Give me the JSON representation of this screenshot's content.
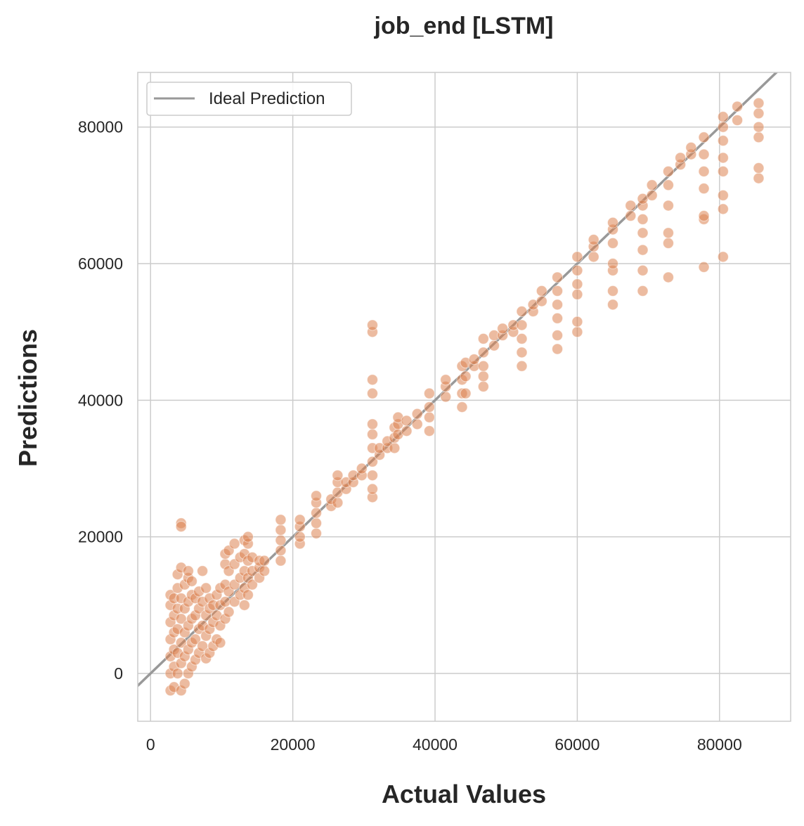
{
  "colors": {
    "point": "#dd8452",
    "ideal_line": "#999999",
    "grid": "#cccccc",
    "axes_edge": "#cccccc",
    "text": "#262626"
  },
  "chart_data": {
    "type": "scatter",
    "title": "job_end [LSTM]",
    "xlabel": "Actual Values",
    "ylabel": "Predictions",
    "xlim": [
      -1800,
      90000
    ],
    "ylim": [
      -7000,
      88000
    ],
    "xticks": [
      0,
      20000,
      40000,
      60000,
      80000
    ],
    "yticks": [
      0,
      20000,
      40000,
      60000,
      80000
    ],
    "xtick_labels": [
      "0",
      "20000",
      "40000",
      "60000",
      "80000"
    ],
    "ytick_labels": [
      "0",
      "20000",
      "40000",
      "60000",
      "80000"
    ],
    "grid": true,
    "legend": {
      "position": "top-left",
      "entries": [
        "Ideal Prediction"
      ]
    },
    "reference_line": {
      "name": "Ideal Prediction",
      "slope": 1,
      "intercept": 0
    },
    "series": [
      {
        "points": [
          [
            2800,
            -2500
          ],
          [
            2800,
            0
          ],
          [
            2800,
            2500
          ],
          [
            2800,
            5000
          ],
          [
            2800,
            7500
          ],
          [
            2800,
            10000
          ],
          [
            2800,
            11500
          ],
          [
            3300,
            -2000
          ],
          [
            3300,
            1000
          ],
          [
            3300,
            3500
          ],
          [
            3300,
            6000
          ],
          [
            3300,
            8500
          ],
          [
            3300,
            11000
          ],
          [
            3800,
            0
          ],
          [
            3800,
            3000
          ],
          [
            3800,
            6500
          ],
          [
            3800,
            9500
          ],
          [
            3800,
            12500
          ],
          [
            3800,
            14500
          ],
          [
            4300,
            -2500
          ],
          [
            4300,
            1500
          ],
          [
            4300,
            4500
          ],
          [
            4300,
            8000
          ],
          [
            4300,
            11000
          ],
          [
            4300,
            15500
          ],
          [
            4300,
            22000
          ],
          [
            4300,
            21500
          ],
          [
            4800,
            -1500
          ],
          [
            4800,
            2500
          ],
          [
            4800,
            6000
          ],
          [
            4800,
            9500
          ],
          [
            4800,
            13000
          ],
          [
            5300,
            0
          ],
          [
            5300,
            3500
          ],
          [
            5300,
            7000
          ],
          [
            5300,
            10500
          ],
          [
            5300,
            14000
          ],
          [
            5300,
            15000
          ],
          [
            5800,
            1000
          ],
          [
            5800,
            4500
          ],
          [
            5800,
            8000
          ],
          [
            5800,
            11500
          ],
          [
            5800,
            13500
          ],
          [
            6300,
            2000
          ],
          [
            6300,
            5000
          ],
          [
            6300,
            8500
          ],
          [
            6300,
            11000
          ],
          [
            6800,
            3000
          ],
          [
            6800,
            6500
          ],
          [
            6800,
            9500
          ],
          [
            6800,
            12000
          ],
          [
            7300,
            4000
          ],
          [
            7300,
            7000
          ],
          [
            7300,
            10500
          ],
          [
            7300,
            15000
          ],
          [
            7800,
            2200
          ],
          [
            7800,
            5500
          ],
          [
            7800,
            8500
          ],
          [
            7800,
            12500
          ],
          [
            8300,
            3000
          ],
          [
            8300,
            6500
          ],
          [
            8300,
            9500
          ],
          [
            8300,
            11000
          ],
          [
            8800,
            4000
          ],
          [
            8800,
            7500
          ],
          [
            8800,
            10000
          ],
          [
            9300,
            5000
          ],
          [
            9300,
            8500
          ],
          [
            9300,
            11500
          ],
          [
            9800,
            4500
          ],
          [
            9800,
            7000
          ],
          [
            9800,
            10000
          ],
          [
            9800,
            12500
          ],
          [
            10500,
            8000
          ],
          [
            10500,
            10500
          ],
          [
            10500,
            13000
          ],
          [
            10500,
            16000
          ],
          [
            10500,
            17500
          ],
          [
            11000,
            9000
          ],
          [
            11000,
            12000
          ],
          [
            11000,
            15000
          ],
          [
            11000,
            18000
          ],
          [
            11800,
            10500
          ],
          [
            11800,
            13000
          ],
          [
            11800,
            16000
          ],
          [
            11800,
            19000
          ],
          [
            12600,
            11500
          ],
          [
            12600,
            14000
          ],
          [
            12600,
            17000
          ],
          [
            13200,
            10000
          ],
          [
            13200,
            12500
          ],
          [
            13200,
            15000
          ],
          [
            13200,
            17500
          ],
          [
            13200,
            19500
          ],
          [
            13700,
            11500
          ],
          [
            13700,
            14000
          ],
          [
            13700,
            16500
          ],
          [
            13700,
            19000
          ],
          [
            13700,
            20000
          ],
          [
            14300,
            13000
          ],
          [
            14300,
            15000
          ],
          [
            14300,
            17000
          ],
          [
            15300,
            14000
          ],
          [
            15300,
            15500
          ],
          [
            15300,
            16500
          ],
          [
            16000,
            15000
          ],
          [
            16000,
            16500
          ],
          [
            18300,
            16500
          ],
          [
            18300,
            18000
          ],
          [
            18300,
            19500
          ],
          [
            18300,
            21000
          ],
          [
            18300,
            22500
          ],
          [
            21000,
            19000
          ],
          [
            21000,
            20000
          ],
          [
            21000,
            21500
          ],
          [
            21000,
            22500
          ],
          [
            23300,
            20500
          ],
          [
            23300,
            22000
          ],
          [
            23300,
            23500
          ],
          [
            23300,
            25000
          ],
          [
            23300,
            26000
          ],
          [
            25400,
            24500
          ],
          [
            25400,
            25500
          ],
          [
            26300,
            25000
          ],
          [
            26300,
            26500
          ],
          [
            26300,
            28000
          ],
          [
            26300,
            29000
          ],
          [
            27500,
            27000
          ],
          [
            27500,
            28000
          ],
          [
            28500,
            28000
          ],
          [
            28500,
            29000
          ],
          [
            29700,
            29000
          ],
          [
            29700,
            30000
          ],
          [
            31200,
            25800
          ],
          [
            31200,
            27000
          ],
          [
            31200,
            29000
          ],
          [
            31200,
            31000
          ],
          [
            31200,
            33000
          ],
          [
            31200,
            35000
          ],
          [
            31200,
            36500
          ],
          [
            31200,
            41000
          ],
          [
            31200,
            43000
          ],
          [
            31200,
            50000
          ],
          [
            31200,
            51000
          ],
          [
            32200,
            32000
          ],
          [
            32200,
            33000
          ],
          [
            33300,
            33000
          ],
          [
            33300,
            34000
          ],
          [
            34300,
            33000
          ],
          [
            34300,
            34500
          ],
          [
            34300,
            36000
          ],
          [
            34800,
            35000
          ],
          [
            34800,
            36500
          ],
          [
            34800,
            37500
          ],
          [
            36000,
            35500
          ],
          [
            36000,
            37000
          ],
          [
            37500,
            36500
          ],
          [
            37500,
            38000
          ],
          [
            39200,
            35500
          ],
          [
            39200,
            37500
          ],
          [
            39200,
            39000
          ],
          [
            39200,
            41000
          ],
          [
            41500,
            40500
          ],
          [
            41500,
            42000
          ],
          [
            41500,
            43000
          ],
          [
            43800,
            39000
          ],
          [
            43800,
            41000
          ],
          [
            43800,
            43000
          ],
          [
            43800,
            45000
          ],
          [
            44300,
            41000
          ],
          [
            44300,
            43500
          ],
          [
            44300,
            45500
          ],
          [
            45500,
            45000
          ],
          [
            45500,
            46000
          ],
          [
            46800,
            42000
          ],
          [
            46800,
            43500
          ],
          [
            46800,
            45000
          ],
          [
            46800,
            47000
          ],
          [
            46800,
            49000
          ],
          [
            48300,
            48000
          ],
          [
            48300,
            49500
          ],
          [
            49500,
            49500
          ],
          [
            49500,
            50500
          ],
          [
            51000,
            50000
          ],
          [
            51000,
            51000
          ],
          [
            52200,
            45000
          ],
          [
            52200,
            47000
          ],
          [
            52200,
            49000
          ],
          [
            52200,
            51000
          ],
          [
            52200,
            53000
          ],
          [
            53800,
            53000
          ],
          [
            53800,
            54000
          ],
          [
            55000,
            54500
          ],
          [
            55000,
            56000
          ],
          [
            57200,
            47500
          ],
          [
            57200,
            49500
          ],
          [
            57200,
            52000
          ],
          [
            57200,
            54000
          ],
          [
            57200,
            56000
          ],
          [
            57200,
            58000
          ],
          [
            60000,
            50000
          ],
          [
            60000,
            51500
          ],
          [
            60000,
            55500
          ],
          [
            60000,
            57000
          ],
          [
            60000,
            59000
          ],
          [
            60000,
            61000
          ],
          [
            62300,
            61000
          ],
          [
            62300,
            62500
          ],
          [
            62300,
            63500
          ],
          [
            65000,
            54000
          ],
          [
            65000,
            56000
          ],
          [
            65000,
            59000
          ],
          [
            65000,
            60000
          ],
          [
            65000,
            63000
          ],
          [
            65000,
            65000
          ],
          [
            65000,
            66000
          ],
          [
            67500,
            67000
          ],
          [
            67500,
            68500
          ],
          [
            69200,
            56000
          ],
          [
            69200,
            59000
          ],
          [
            69200,
            62000
          ],
          [
            69200,
            64500
          ],
          [
            69200,
            66500
          ],
          [
            69200,
            68500
          ],
          [
            69200,
            69500
          ],
          [
            70500,
            70000
          ],
          [
            70500,
            71500
          ],
          [
            72800,
            58000
          ],
          [
            72800,
            63000
          ],
          [
            72800,
            64500
          ],
          [
            72800,
            68500
          ],
          [
            72800,
            71500
          ],
          [
            72800,
            73500
          ],
          [
            74500,
            74500
          ],
          [
            74500,
            75500
          ],
          [
            76000,
            76000
          ],
          [
            76000,
            77000
          ],
          [
            77800,
            59500
          ],
          [
            77800,
            66500
          ],
          [
            77800,
            67000
          ],
          [
            77800,
            71000
          ],
          [
            77800,
            73500
          ],
          [
            77800,
            76000
          ],
          [
            77800,
            78500
          ],
          [
            80500,
            61000
          ],
          [
            80500,
            68000
          ],
          [
            80500,
            70000
          ],
          [
            80500,
            73500
          ],
          [
            80500,
            75500
          ],
          [
            80500,
            78000
          ],
          [
            80500,
            80000
          ],
          [
            80500,
            81500
          ],
          [
            82500,
            81000
          ],
          [
            82500,
            83000
          ],
          [
            85500,
            72500
          ],
          [
            85500,
            74000
          ],
          [
            85500,
            78500
          ],
          [
            85500,
            80000
          ],
          [
            85500,
            82000
          ],
          [
            85500,
            83500
          ]
        ]
      }
    ]
  }
}
